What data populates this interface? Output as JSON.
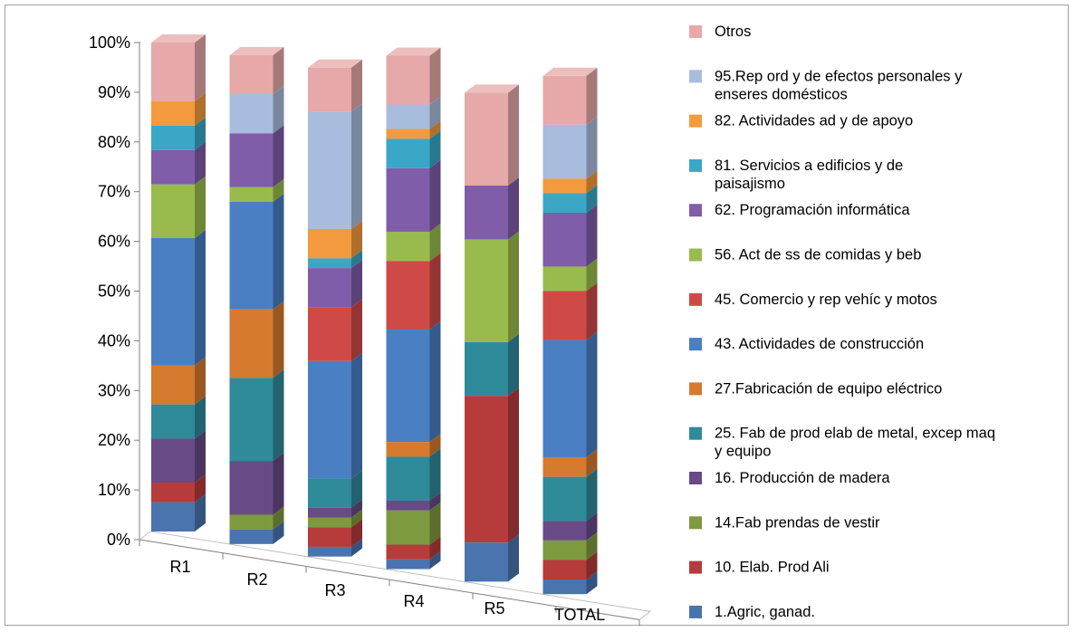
{
  "chart_data": {
    "type": "bar",
    "stacked": "percent",
    "three_d": true,
    "title": "",
    "xlabel": "",
    "ylabel": "",
    "ylim": [
      0,
      100
    ],
    "y_ticks": [
      "0%",
      "10%",
      "20%",
      "30%",
      "40%",
      "50%",
      "60%",
      "70%",
      "80%",
      "90%",
      "100%"
    ],
    "grid": false,
    "legend_position": "right",
    "categories": [
      "R1",
      "R2",
      "R3",
      "R4",
      "R5",
      "TOTAL"
    ],
    "series": [
      {
        "name": "1.Agric, ganad.",
        "color": "#4a74ad",
        "values": [
          6,
          3,
          2,
          2,
          8,
          3
        ]
      },
      {
        "name": "10. Elab. Prod Ali",
        "color": "#b53c3a",
        "values": [
          4,
          0,
          4,
          3,
          30,
          4
        ]
      },
      {
        "name": "14.Fab prendas de vestir",
        "color": "#7d9a3f",
        "values": [
          0,
          3,
          2,
          7,
          0,
          4
        ]
      },
      {
        "name": "16. Producción de madera",
        "color": "#674a86",
        "values": [
          9,
          11,
          2,
          2,
          0,
          4
        ]
      },
      {
        "name": "25. Fab de prod elab de metal, excep maq y equipo",
        "color": "#2f8a9a",
        "values": [
          7,
          17,
          6,
          9,
          11,
          9
        ]
      },
      {
        "name": "27.Fabricación de equipo eléctrico",
        "color": "#d57a2f",
        "values": [
          8,
          14,
          0,
          3,
          0,
          4
        ]
      },
      {
        "name": "43. Actividades de construcción",
        "color": "#4a7fc4",
        "values": [
          26,
          22,
          24,
          23,
          0,
          24
        ]
      },
      {
        "name": "45. Comercio y rep vehíc y motos",
        "color": "#cf4a47",
        "values": [
          0,
          0,
          11,
          14,
          0,
          10
        ]
      },
      {
        "name": "56. Act de ss de comidas y beb",
        "color": "#99bb4d",
        "values": [
          11,
          3,
          0,
          6,
          21,
          5
        ]
      },
      {
        "name": "62. Programación informática",
        "color": "#7f5da8",
        "values": [
          7,
          11,
          8,
          13,
          11,
          11
        ]
      },
      {
        "name": "81. Servicios a edificios y de paisajismo",
        "color": "#3ba7c7",
        "values": [
          5,
          0,
          2,
          6,
          0,
          4
        ]
      },
      {
        "name": "82. Actividades ad y de apoyo",
        "color": "#f39a3f",
        "values": [
          5,
          0,
          6,
          2,
          0,
          3
        ]
      },
      {
        "name": "95.Rep ord y de efectos personales y enseres domésticos",
        "color": "#a8bcdd",
        "values": [
          0,
          8,
          24,
          5,
          0,
          11
        ]
      },
      {
        "name": "Otros",
        "color": "#e6a8a8",
        "values": [
          12,
          8,
          9,
          10,
          19,
          10
        ]
      }
    ]
  }
}
